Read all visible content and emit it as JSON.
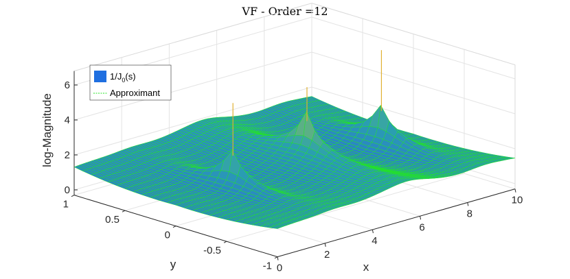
{
  "chart_data": {
    "type": "surface",
    "title": "VF - Order =12",
    "xlabel": "x",
    "ylabel": "y",
    "zlabel": "log-Magnitude",
    "xlim": [
      0,
      10
    ],
    "ylim": [
      -1,
      1
    ],
    "zlim": [
      -0.3,
      6.8
    ],
    "x_ticks": [
      "0",
      "2",
      "4",
      "6",
      "8",
      "10"
    ],
    "y_ticks": [
      "-1",
      "-0.5",
      "0",
      "0.5",
      "1"
    ],
    "z_ticks": [
      "0",
      "2",
      "4",
      "6"
    ],
    "grid": true,
    "legend": {
      "placement": "top-left",
      "entries": [
        {
          "label_main": "1/J",
          "label_sub": "0",
          "label_tail": "(s)",
          "color": "#1f6fe0",
          "style": "filled-patch"
        },
        {
          "label": "Approximant",
          "color": "#22e622",
          "style": "dashed-line"
        }
      ]
    },
    "series": [
      {
        "name": "1/J0(s)",
        "function": "log10(|1/J0(x + i*y)|)",
        "peaks_at_x": [
          2.405,
          5.52,
          8.654
        ],
        "peak_values": [
          5.8,
          5.5,
          6.4
        ],
        "colormap": [
          "#2a6fd6",
          "#2aa0b0",
          "#8ec05a",
          "#e0b030"
        ]
      },
      {
        "name": "Approximant",
        "color": "#22e622"
      }
    ]
  }
}
